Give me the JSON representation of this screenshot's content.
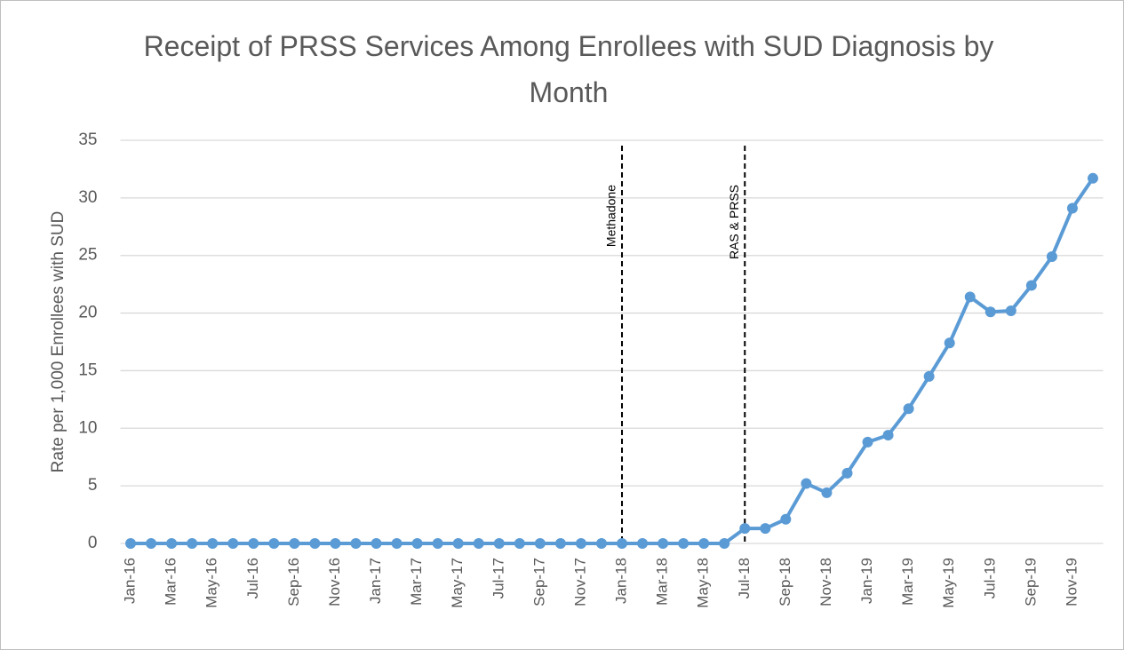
{
  "chart_data": {
    "type": "line",
    "title": "Receipt of PRSS Services Among Enrollees with SUD Diagnosis by Month",
    "y_label": "Rate per 1,000 Enrollees with SUD",
    "categories": [
      "Jan-16",
      null,
      "Mar-16",
      null,
      "May-16",
      null,
      "Jul-16",
      null,
      "Sep-16",
      null,
      "Nov-16",
      null,
      "Jan-17",
      null,
      "Mar-17",
      null,
      "May-17",
      null,
      "Jul-17",
      null,
      "Sep-17",
      null,
      "Nov-17",
      null,
      "Jan-18",
      null,
      "Mar-18",
      null,
      "May-18",
      null,
      "Jul-18",
      null,
      "Sep-18",
      null,
      "Nov-18",
      null,
      "Jan-19",
      null,
      "Mar-19",
      null,
      "May-19",
      null,
      "Jul-19",
      null,
      "Sep-19",
      null,
      "Nov-19",
      null
    ],
    "series": [
      {
        "name": "Rate",
        "color": "#5b9bd5",
        "values": [
          0,
          0,
          0,
          0,
          0,
          0,
          0,
          0,
          0,
          0,
          0,
          0,
          0,
          0,
          0,
          0,
          0,
          0,
          0,
          0,
          0,
          0,
          0,
          0,
          0,
          0,
          0,
          0,
          0,
          0,
          1.3,
          1.3,
          2.1,
          5.2,
          4.4,
          6.1,
          8.8,
          9.4,
          11.7,
          14.5,
          17.4,
          21.4,
          20.1,
          20.2,
          22.4,
          24.9,
          29.1,
          31.7
        ]
      }
    ],
    "ylim": [
      0,
      35
    ],
    "yticks": [
      0,
      5,
      10,
      15,
      20,
      25,
      30,
      35
    ],
    "grid": true,
    "annotations": [
      {
        "label": "Methadone",
        "x": "Jan-18"
      },
      {
        "label": "RAS & PRSS",
        "x": "Jul-18"
      }
    ]
  }
}
